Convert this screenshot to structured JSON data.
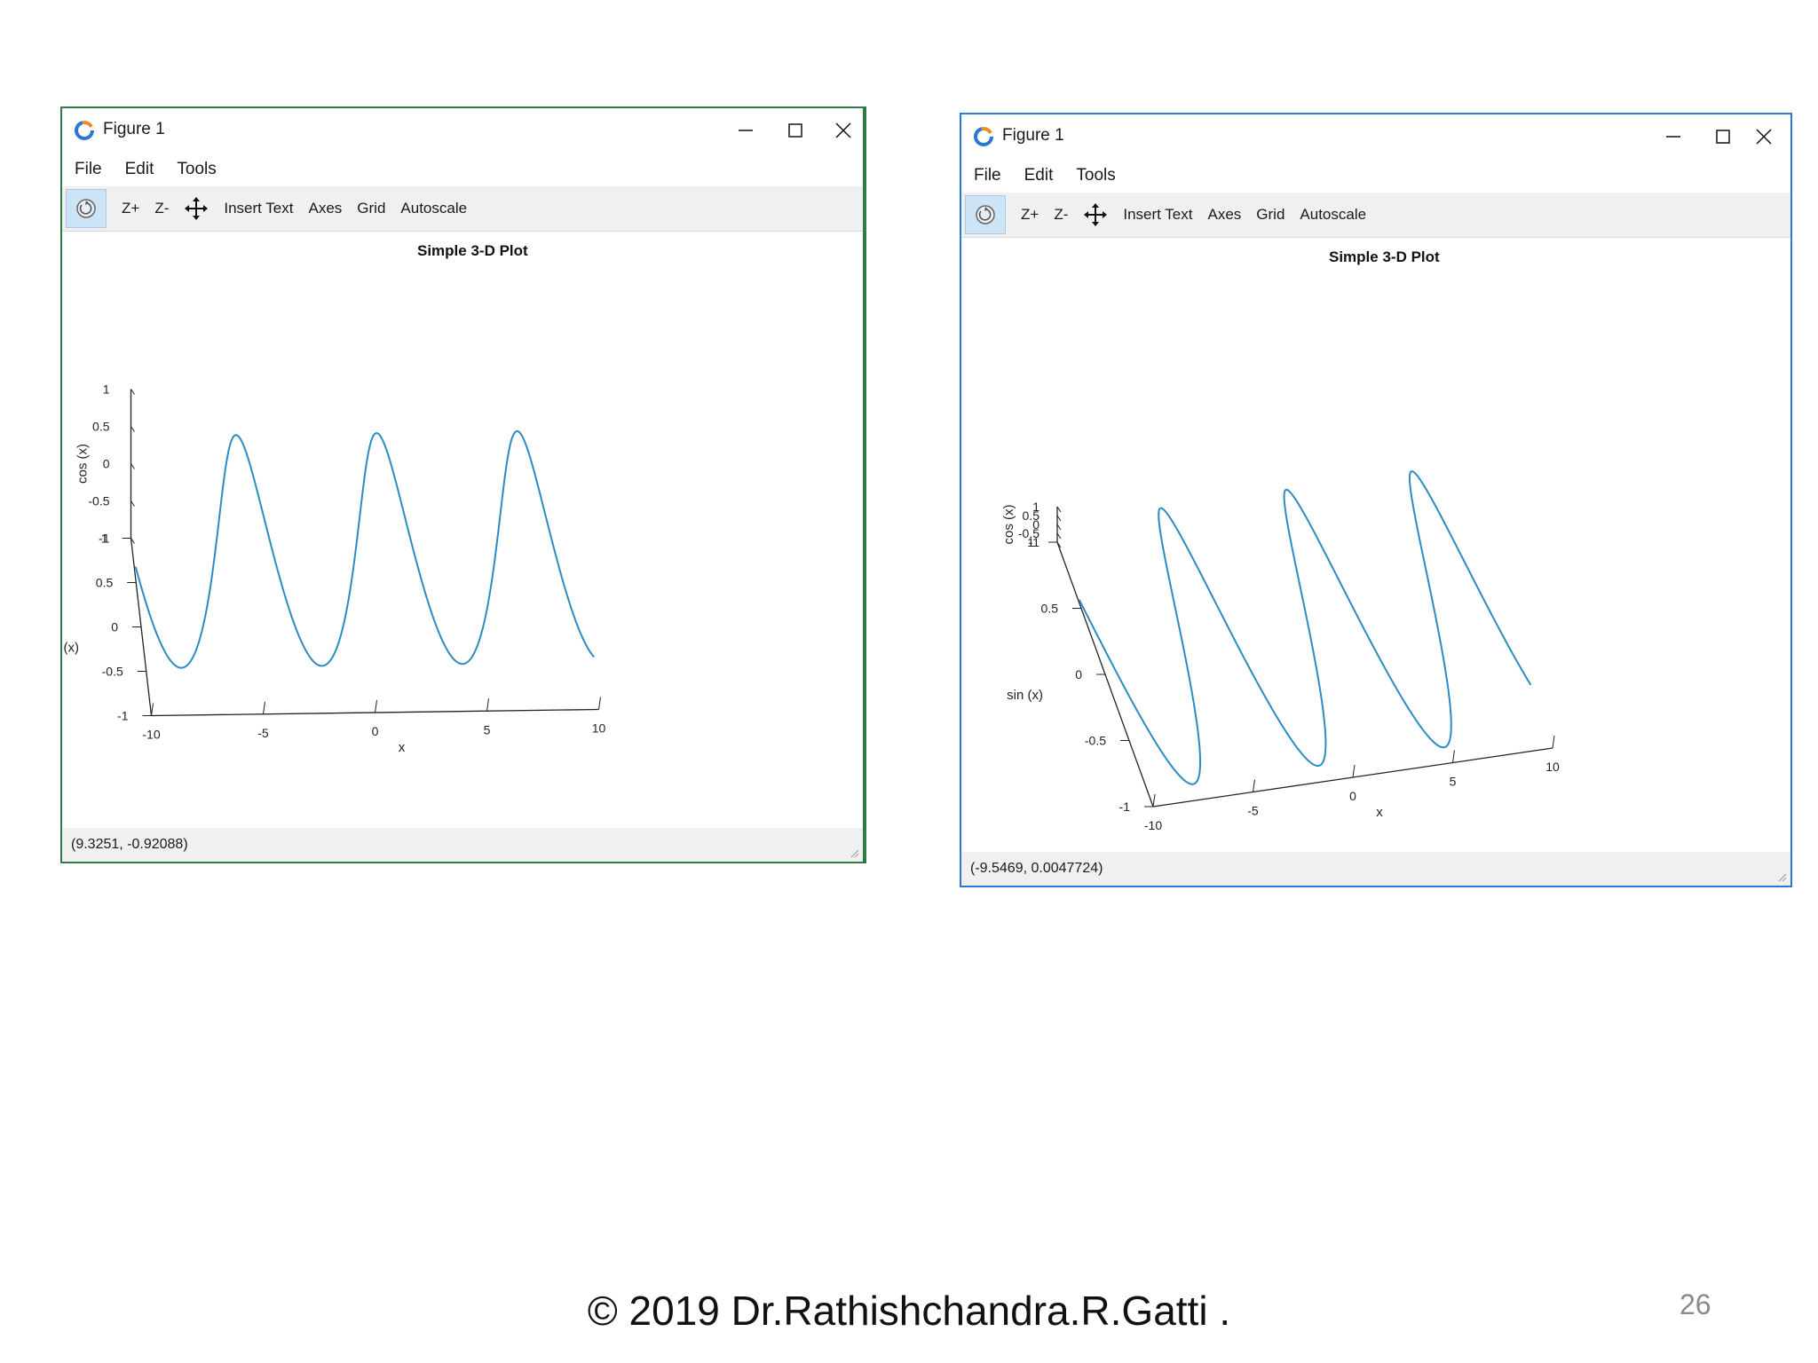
{
  "windows": [
    {
      "title": "Figure 1",
      "menu": [
        "File",
        "Edit",
        "Tools"
      ],
      "toolbar": [
        "Z+",
        "Z-",
        "Insert Text",
        "Axes",
        "Grid",
        "Autoscale"
      ],
      "status": "(9.3251, -0.92088)"
    },
    {
      "title": "Figure 1",
      "menu": [
        "File",
        "Edit",
        "Tools"
      ],
      "toolbar": [
        "Z+",
        "Z-",
        "Insert Text",
        "Axes",
        "Grid",
        "Autoscale"
      ],
      "status": "(-9.5469, 0.0047724)"
    }
  ],
  "footer": {
    "copyright": "© 2019 Dr.Rathishchandra.R.Gatti .",
    "page_number": "26"
  },
  "chart_data": [
    {
      "type": "line",
      "title": "Simple 3-D Plot",
      "x_function": "x",
      "y_function": "sin (x)",
      "z_function": "cos (x)",
      "xlabel": "x",
      "ylabel": "sin (x)",
      "zlabel": "cos (x)",
      "xlim": [
        -10,
        10
      ],
      "ylim": [
        -1,
        1
      ],
      "zlim": [
        -1,
        1
      ],
      "x_ticks": [
        -10,
        -5,
        0,
        5,
        10
      ],
      "y_ticks": [
        -1,
        -0.5,
        0,
        0.5,
        1
      ],
      "z_ticks": [
        -1,
        -0.5,
        0,
        0.5,
        1
      ],
      "series_color": "#2b8cc4"
    },
    {
      "type": "line",
      "title": "Simple 3-D Plot",
      "x_function": "x",
      "y_function": "sin (x)",
      "z_function": "cos (x)",
      "xlabel": "x",
      "ylabel": "sin (x)",
      "zlabel": "cos (x)",
      "xlim": [
        -10,
        10
      ],
      "ylim": [
        -1,
        1
      ],
      "zlim": [
        -1,
        1
      ],
      "x_ticks": [
        -10,
        -5,
        0,
        5,
        10
      ],
      "y_ticks": [
        -1,
        -0.5,
        0,
        0.5,
        1
      ],
      "z_ticks": [
        -1,
        -0.5,
        0,
        0.5,
        1
      ],
      "series_color": "#2b8cc4"
    }
  ]
}
